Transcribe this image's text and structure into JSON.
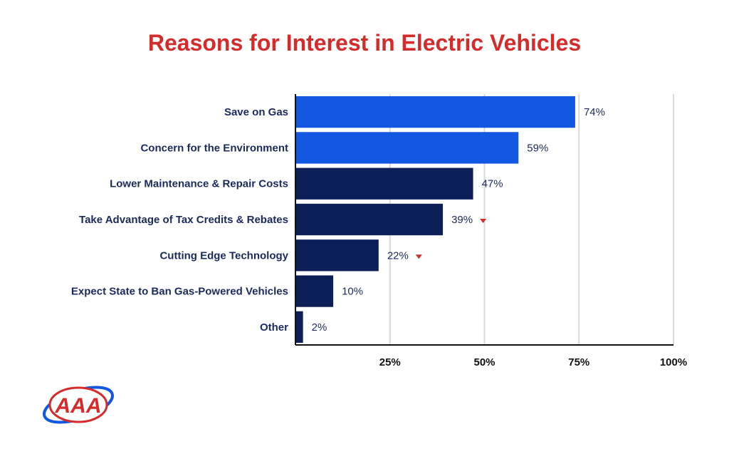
{
  "chart_data": {
    "type": "bar",
    "orientation": "horizontal",
    "title": "Reasons for Interest in Electric Vehicles",
    "categories": [
      "Save on Gas",
      "Concern for the Environment",
      "Lower Maintenance & Repair Costs",
      "Take Advantage of Tax Credits & Rebates",
      "Cutting Edge Technology",
      "Expect State to Ban Gas-Powered Vehicles",
      "Other"
    ],
    "values": [
      74,
      59,
      47,
      39,
      22,
      10,
      2
    ],
    "value_labels": [
      "74%",
      "59%",
      "47%",
      "39%",
      "22%",
      "10%",
      "2%"
    ],
    "decrease_marker": [
      false,
      false,
      false,
      true,
      true,
      false,
      false
    ],
    "highlighted": [
      true,
      true,
      false,
      false,
      false,
      false,
      false
    ],
    "xlim": [
      0,
      100
    ],
    "xticks": [
      25,
      50,
      75,
      100
    ],
    "xtick_labels": [
      "25%",
      "50%",
      "75%",
      "100%"
    ],
    "grid": "vertical",
    "legend": "none"
  },
  "colors": {
    "title": "#d52b2b",
    "bar_highlight": "#1257e0",
    "bar_default": "#0c1f57",
    "decrease_marker": "#d52b2b",
    "gridline": "#d9d9d9",
    "axis": "#111111"
  },
  "logo": {
    "text": "AAA",
    "icon": "aaa-logo-icon"
  }
}
